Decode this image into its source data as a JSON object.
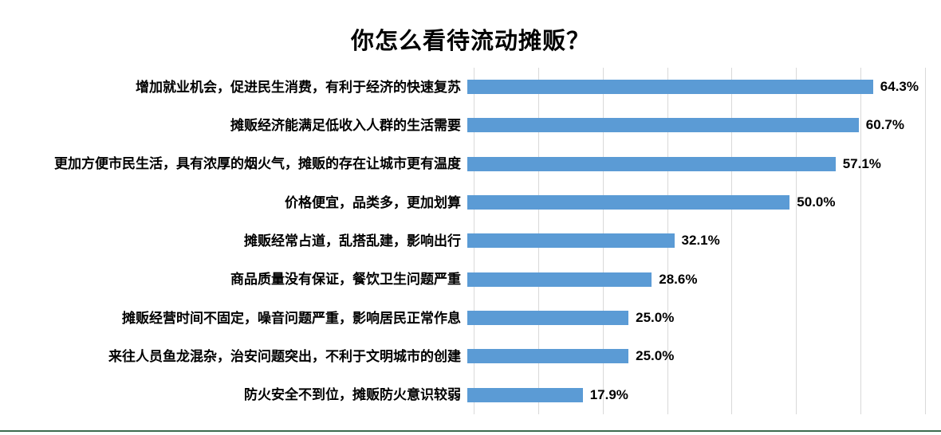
{
  "chart_data": {
    "type": "bar",
    "orientation": "horizontal",
    "title": "你怎么看待流动摊贩？",
    "categories": [
      "增加就业机会，促进民生消费，有利于经济的快速复苏",
      "摊贩经济能满足低收入人群的生活需要",
      "更加方便市民生活，具有浓厚的烟火气，摊贩的存在让城市更有温度",
      "价格便宜，品类多，更加划算",
      "摊贩经常占道，乱搭乱建，影响出行",
      "商品质量没有保证，餐饮卫生问题严重",
      "摊贩经营时间不固定，噪音问题严重，影响居民正常作息",
      "来往人员鱼龙混杂，治安问题突出，不利于文明城市的创建",
      "防火安全不到位，摊贩防火意识较弱"
    ],
    "values": [
      64.3,
      60.7,
      57.1,
      50.0,
      32.1,
      28.6,
      25.0,
      25.0,
      17.9
    ],
    "value_labels": [
      "64.3%",
      "60.7%",
      "57.1%",
      "50.0%",
      "32.1%",
      "28.6%",
      "25.0%",
      "25.0%",
      "17.9%"
    ],
    "xlabel": "",
    "ylabel": "",
    "xlim": [
      0,
      70
    ],
    "tick_step": 10,
    "grid": "vertical",
    "legend": "none",
    "bar_color": "#5B9BD5",
    "gridline_color": "#D9D9D9",
    "bottom_border_color": "#3E6B4F",
    "text_color": "#000000"
  }
}
